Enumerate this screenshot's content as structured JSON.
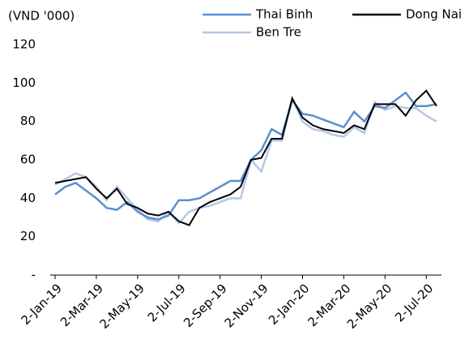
{
  "chart_data": {
    "type": "line",
    "unit_label": "(VND '000)",
    "categories": [
      "2-Jan-19",
      null,
      null,
      null,
      "2-Mar-19",
      null,
      null,
      null,
      "2-May-19",
      null,
      null,
      null,
      "2-Jul-19",
      null,
      null,
      null,
      "2-Sep-19",
      null,
      null,
      null,
      "2-Nov-19",
      null,
      null,
      null,
      "2-Jan-20",
      null,
      null,
      null,
      "2-Mar-20",
      null,
      null,
      null,
      "2-May-20",
      null,
      null,
      null,
      "2-Jul-20",
      null
    ],
    "series": [
      {
        "name": "Thai Binh",
        "color": "#5b8fcf",
        "values": [
          42,
          46,
          48,
          44,
          40,
          35,
          34,
          38,
          33,
          30,
          29,
          31,
          39,
          39,
          40,
          43,
          46,
          49,
          49,
          60,
          65,
          76,
          73,
          91,
          84,
          83,
          81,
          79,
          77,
          85,
          80,
          88,
          87,
          91,
          95,
          88,
          88,
          89
        ]
      },
      {
        "name": "Dong Nai",
        "color": "#000000",
        "values": [
          48,
          49,
          50,
          51,
          45,
          40,
          45,
          37,
          35,
          32,
          31,
          33,
          28,
          26,
          35,
          38,
          40,
          42,
          46,
          60,
          61,
          71,
          71,
          92,
          82,
          78,
          76,
          75,
          74,
          78,
          76,
          89,
          89,
          89,
          83,
          91,
          96,
          88
        ]
      },
      {
        "name": "Ben Tre",
        "color": "#b4c7e7",
        "values": [
          47,
          50,
          53,
          51,
          46,
          39,
          46,
          40,
          34,
          29,
          28,
          33,
          27,
          33,
          35,
          36,
          38,
          40,
          40,
          60,
          54,
          70,
          70,
          92,
          80,
          76,
          75,
          73,
          72,
          77,
          74,
          90,
          86,
          88,
          87,
          87,
          83,
          80
        ]
      }
    ],
    "ylim": [
      0,
      120
    ],
    "yticks": [
      {
        "value": 0,
        "label": "-"
      },
      20,
      40,
      60,
      80,
      100,
      120
    ],
    "grid": false
  }
}
